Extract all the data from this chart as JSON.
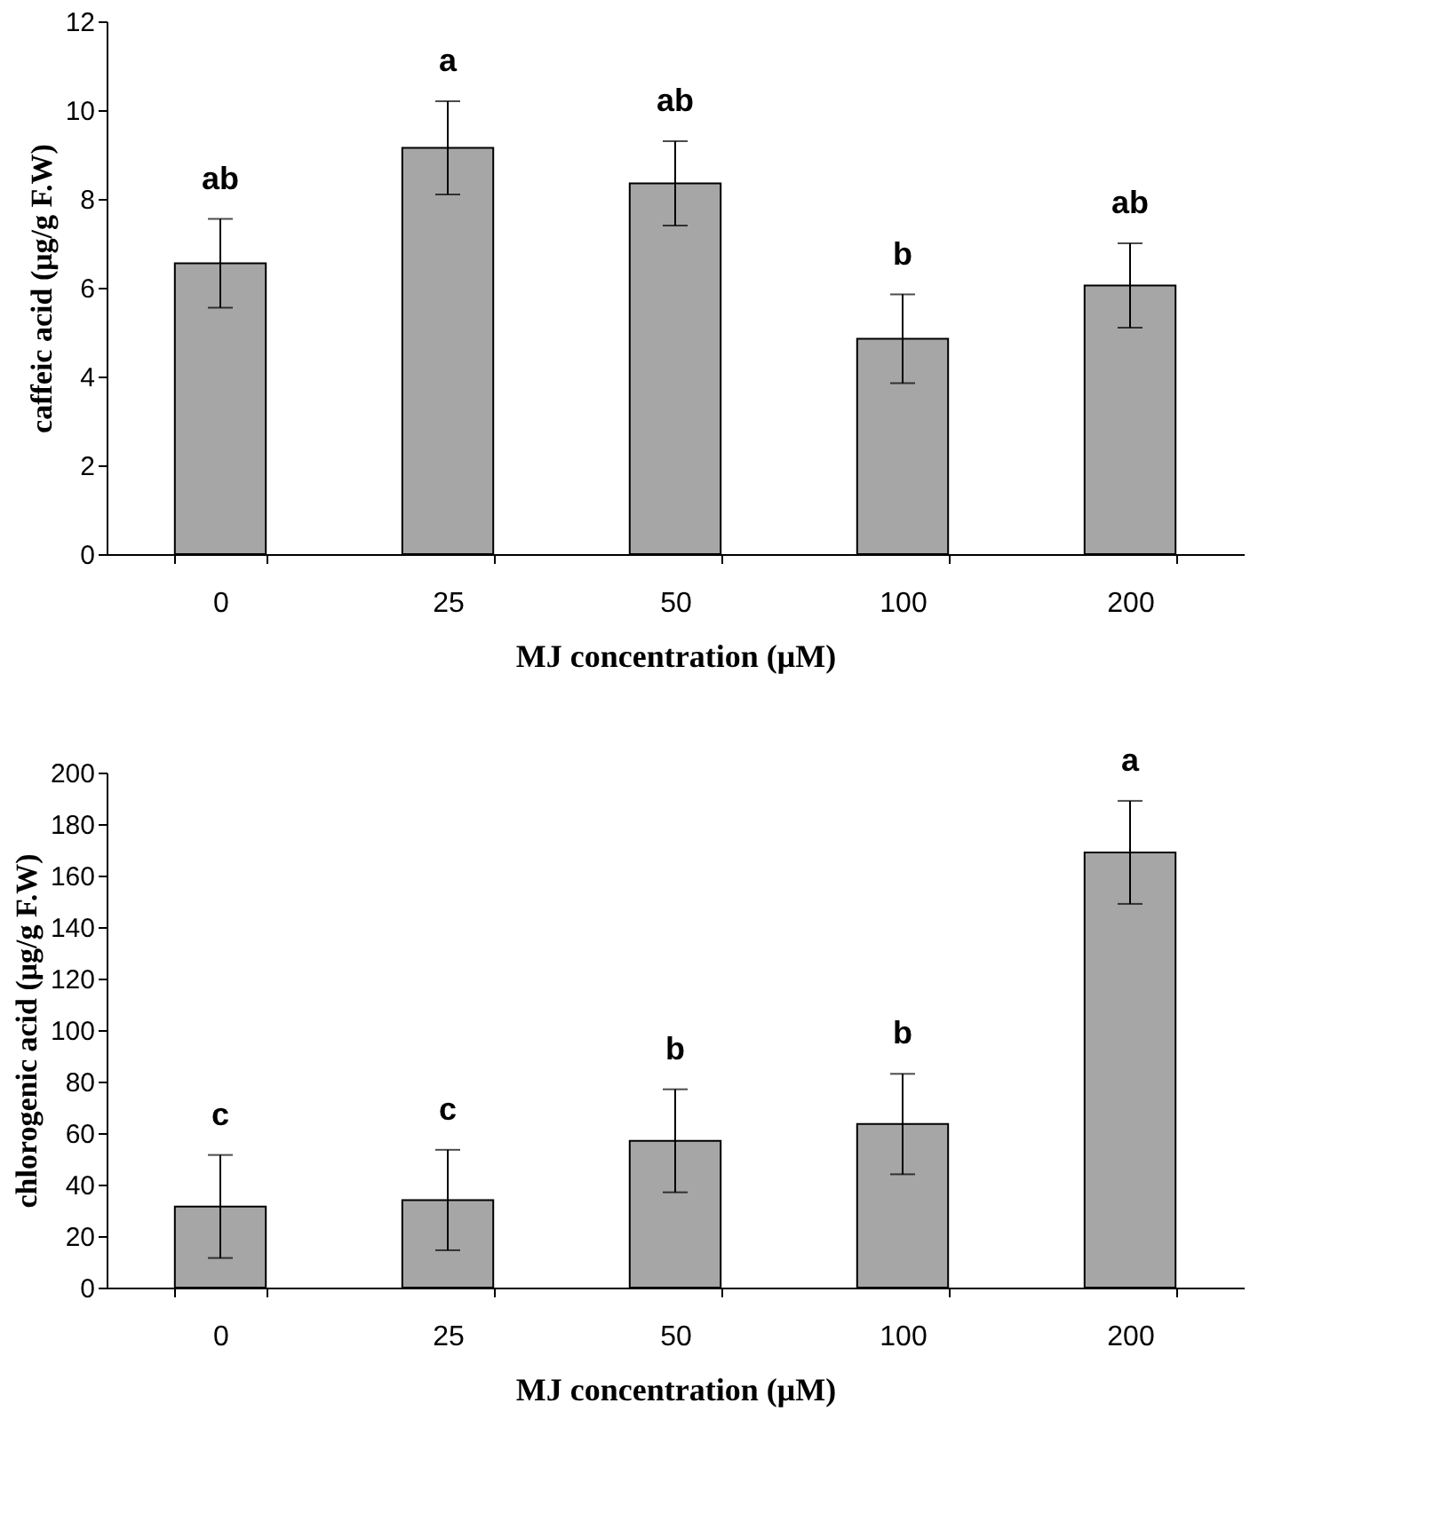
{
  "chart_data": [
    {
      "type": "bar",
      "xlabel": "MJ concentration (μM)",
      "ylabel": "caffeic acid (μg/g F.W)",
      "categories": [
        "0",
        "25",
        "50",
        "100",
        "200"
      ],
      "series": [
        {
          "color": "#a6a6a6",
          "values": [
            6.55,
            9.15,
            8.35,
            4.85,
            6.05
          ],
          "errors": [
            1.0,
            1.05,
            0.95,
            1.0,
            0.95
          ]
        }
      ],
      "ylim": [
        0,
        12
      ],
      "yticks": [
        0,
        2,
        4,
        6,
        8,
        10,
        12
      ],
      "grid": false,
      "legend": false,
      "annotations": [
        {
          "text": "ab",
          "x": "0",
          "y": 7.55
        },
        {
          "text": "a",
          "x": "25",
          "y": 10.2
        },
        {
          "text": "ab",
          "x": "50",
          "y": 9.3
        },
        {
          "text": "b",
          "x": "100",
          "y": 5.85
        },
        {
          "text": "ab",
          "x": "200",
          "y": 7.0
        }
      ]
    },
    {
      "type": "bar",
      "xlabel": "MJ concentration (μM)",
      "ylabel": "chlorogenic acid (μg/g F.W)",
      "categories": [
        "0",
        "25",
        "50",
        "100",
        "200"
      ],
      "series": [
        {
          "color": "#a6a6a6",
          "values": [
            31.5,
            34,
            57,
            63.5,
            169
          ],
          "errors": [
            20,
            19.5,
            20,
            19.5,
            20
          ]
        }
      ],
      "ylim": [
        0,
        200
      ],
      "yticks": [
        0,
        20,
        40,
        60,
        80,
        100,
        120,
        140,
        160,
        180,
        200
      ],
      "grid": false,
      "legend": false,
      "annotations": [
        {
          "text": "c",
          "x": "0",
          "y": 51.5
        },
        {
          "text": "c",
          "x": "25",
          "y": 53.5
        },
        {
          "text": "b",
          "x": "50",
          "y": 77
        },
        {
          "text": "b",
          "x": "100",
          "y": 83
        },
        {
          "text": "a",
          "x": "200",
          "y": 189
        }
      ]
    }
  ]
}
